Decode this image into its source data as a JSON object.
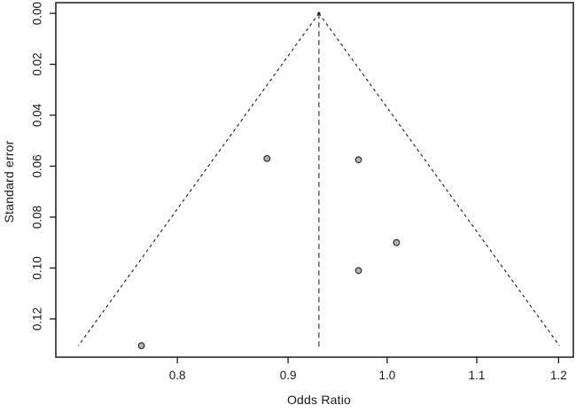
{
  "figure": {
    "kind": "funnel-plot",
    "background": "#ffffff"
  },
  "chart_data": {
    "type": "scatter",
    "subtype": "funnel-plot",
    "title": "",
    "xlabel": "Odds Ratio",
    "ylabel": "Standard error",
    "x_scale": "log",
    "y_inverted": true,
    "grid": false,
    "legend": false,
    "xlim": [
      0.703,
      1.219
    ],
    "ylim": [
      -0.0042,
      0.135
    ],
    "x_ticks": [
      0.8,
      0.9,
      1.0,
      1.1,
      1.2
    ],
    "x_tick_labels": [
      "0.8",
      "0.9",
      "1.0",
      "1.1",
      "1.2"
    ],
    "y_ticks": [
      0.0,
      0.02,
      0.04,
      0.06,
      0.08,
      0.1,
      0.12
    ],
    "y_tick_labels": [
      "0.00",
      "0.02",
      "0.04",
      "0.06",
      "0.08",
      "0.10",
      "0.12"
    ],
    "points": [
      {
        "odds_ratio": 0.88,
        "standard_error": 0.057
      },
      {
        "odds_ratio": 0.97,
        "standard_error": 0.0575
      },
      {
        "odds_ratio": 1.01,
        "standard_error": 0.09
      },
      {
        "odds_ratio": 0.97,
        "standard_error": 0.101
      },
      {
        "odds_ratio": 0.77,
        "standard_error": 0.1305
      },
      {
        "_comment": "summary estimate / funnel apex",
        "summary_odds_ratio": 0.93
      }
    ],
    "summary_odds_ratio": 0.93,
    "funnel": {
      "apex_odds_ratio": 0.93,
      "apex_standard_error": 0.0,
      "ci_z": 1.96,
      "se_at_bottom": 0.1305,
      "line_style": "dashed"
    },
    "colors": {
      "point_fill": "#b4b4b4",
      "point_stroke": "#2b2b2b",
      "funnel_line": "#1a1a1a",
      "summary_line": "#5a5a5a",
      "box": "#1a1a1a",
      "text": "#1a1a1a",
      "background": "#ffffff"
    }
  }
}
